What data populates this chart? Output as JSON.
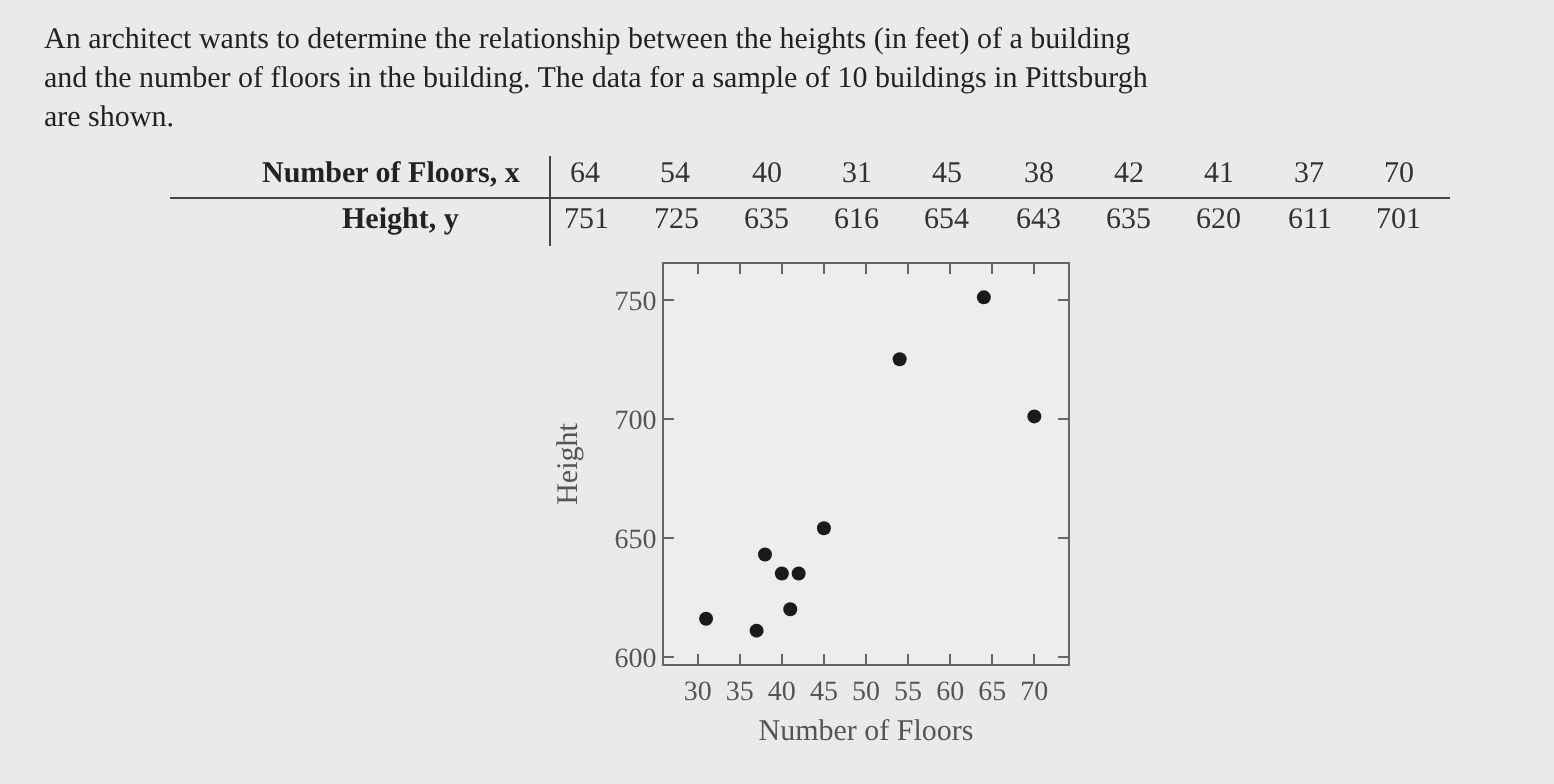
{
  "chart_data": {
    "type": "scatter",
    "title": "An architect wants to determine the relationship between the heights (in feet) of a building and the number of floors in the building. The data for a sample of 10 buildings in Pittsburgh are shown.",
    "xlabel": "Number of Floors",
    "ylabel": "Height",
    "x": [
      64,
      54,
      40,
      31,
      45,
      38,
      42,
      41,
      37,
      70
    ],
    "values": [
      751,
      725,
      635,
      616,
      654,
      643,
      635,
      620,
      611,
      701
    ],
    "color": "#1a1a1a",
    "marker": "circle",
    "annotations": [
      "Number of Floors, x",
      "64",
      "54",
      "40",
      "31",
      "45",
      "38",
      "42",
      "41",
      "37",
      "70",
      "Height, y",
      "751",
      "725",
      "635",
      "616",
      "654",
      "643",
      "635",
      "620",
      "611",
      "701"
    ],
    "xlim": [
      26,
      74
    ],
    "xticks": [
      30,
      35,
      40,
      45,
      50,
      55,
      60,
      65,
      70
    ],
    "ylim": [
      597,
      765
    ],
    "yticks": [
      600,
      650,
      700,
      750
    ],
    "grid": false,
    "legend": false
  }
}
